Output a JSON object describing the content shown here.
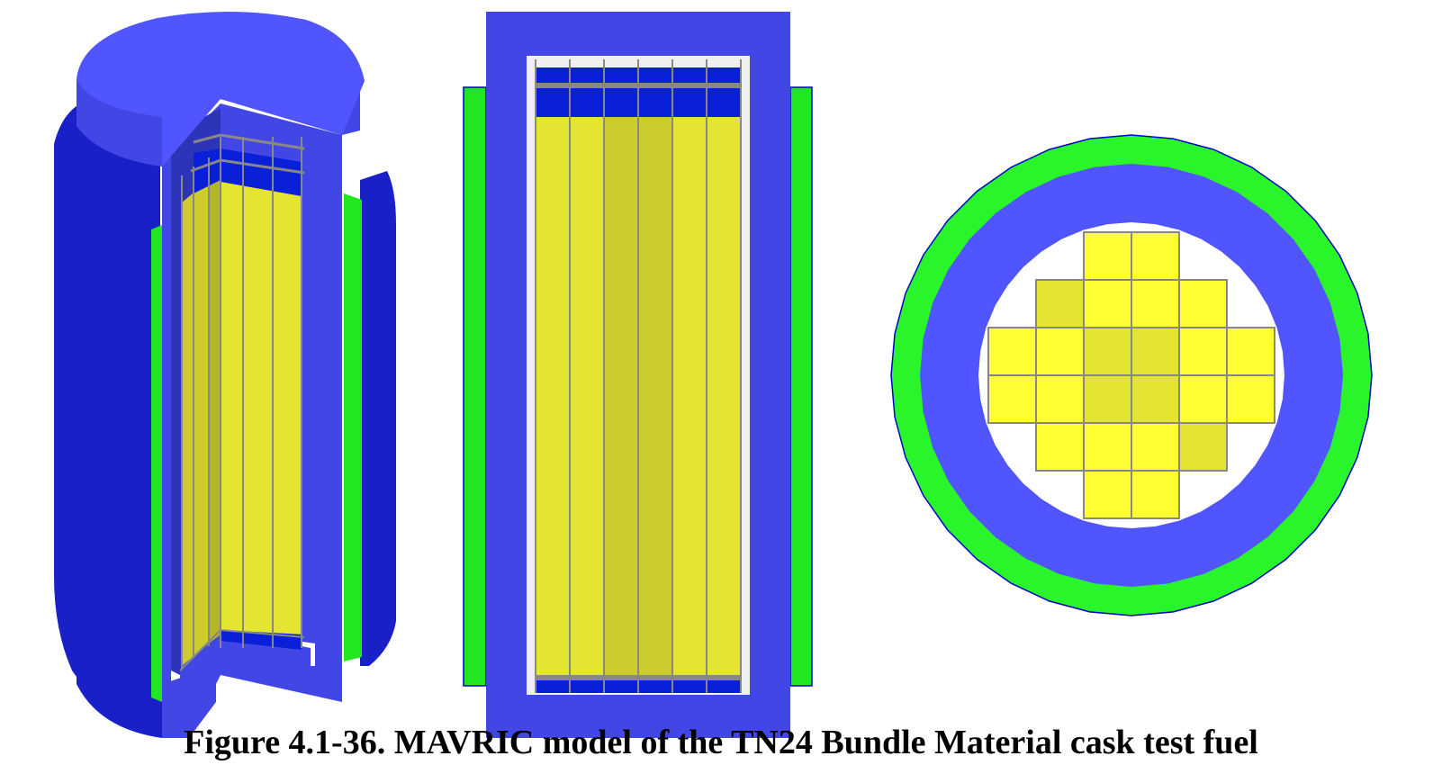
{
  "caption": "Figure 4.1-36. MAVRIC model of the TN24 Bundle Material cask test fuel",
  "colors": {
    "cask_body": "#4246E4",
    "cask_top": "#5055FF",
    "cask_shadow": "#1A20C8",
    "neutron_shield": "#22E622",
    "neutron_shield_bright": "#2AF52A",
    "outline_blue": "#0000CC",
    "end_region": "#0A1FD8",
    "fuel_light": "#FFFF33",
    "fuel_mid": "#E4E432",
    "fuel_dark": "#CCCC2E",
    "rod_line": "#888888",
    "cavity": "#F0F0F0"
  },
  "figure": {
    "views": [
      "cutaway-3d-view",
      "axial-section-view",
      "radial-section-view"
    ],
    "axial_columns": 6,
    "axial_column_shades": [
      "fuel_mid",
      "fuel_mid",
      "fuel_dark",
      "fuel_dark",
      "fuel_mid",
      "fuel_mid"
    ],
    "radial_grid": [
      [
        0,
        0,
        1,
        1,
        0,
        0
      ],
      [
        0,
        2,
        1,
        1,
        1,
        0
      ],
      [
        1,
        1,
        2,
        2,
        1,
        1
      ],
      [
        1,
        1,
        2,
        2,
        1,
        1
      ],
      [
        0,
        1,
        1,
        1,
        2,
        0
      ],
      [
        0,
        0,
        1,
        1,
        0,
        0
      ]
    ]
  }
}
